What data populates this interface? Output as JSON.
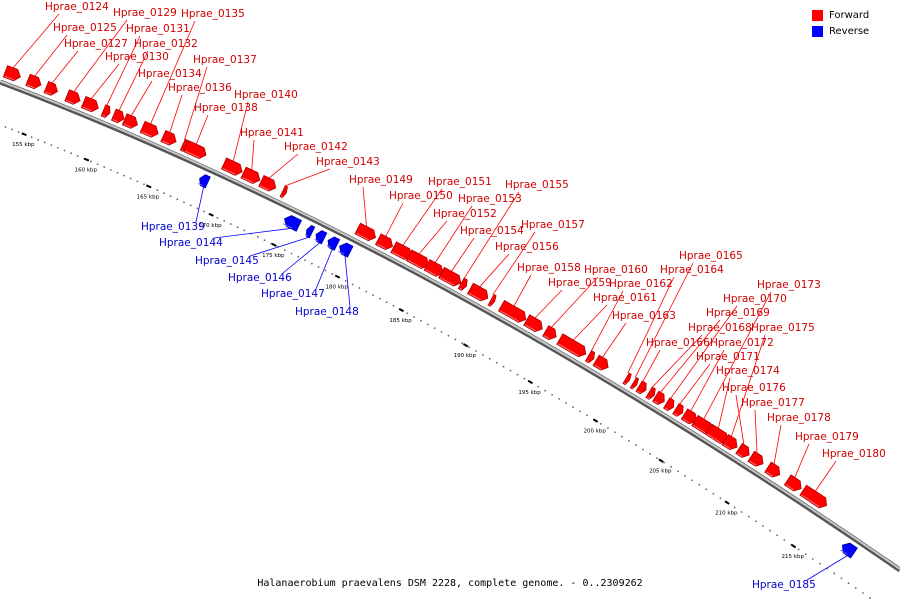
{
  "legend": {
    "items": [
      {
        "label": "Forward",
        "color": "#ff0000"
      },
      {
        "label": "Reverse",
        "color": "#0000ff"
      }
    ]
  },
  "caption": "Halanaerobium praevalens DSM 2228, complete genome. - 0..2309262",
  "ticks": [
    "155 kbp",
    "160 kbp",
    "165 kbp",
    "170 kbp",
    "175 kbp",
    "180 kbp",
    "185 kbp",
    "190 kbp",
    "195 kbp",
    "200 kbp",
    "205 kbp",
    "210 kbp",
    "215 kbp"
  ],
  "genes": [
    {
      "id": "Hprae_0124",
      "strand": "forward"
    },
    {
      "id": "Hprae_0125",
      "strand": "forward"
    },
    {
      "id": "Hprae_0127",
      "strand": "forward"
    },
    {
      "id": "Hprae_0129",
      "strand": "forward"
    },
    {
      "id": "Hprae_0130",
      "strand": "forward"
    },
    {
      "id": "Hprae_0131",
      "strand": "forward"
    },
    {
      "id": "Hprae_0132",
      "strand": "forward"
    },
    {
      "id": "Hprae_0134",
      "strand": "forward"
    },
    {
      "id": "Hprae_0135",
      "strand": "forward"
    },
    {
      "id": "Hprae_0136",
      "strand": "forward"
    },
    {
      "id": "Hprae_0137",
      "strand": "forward"
    },
    {
      "id": "Hprae_0138",
      "strand": "forward"
    },
    {
      "id": "Hprae_0139",
      "strand": "reverse"
    },
    {
      "id": "Hprae_0140",
      "strand": "forward"
    },
    {
      "id": "Hprae_0141",
      "strand": "forward"
    },
    {
      "id": "Hprae_0142",
      "strand": "forward"
    },
    {
      "id": "Hprae_0143",
      "strand": "forward"
    },
    {
      "id": "Hprae_0144",
      "strand": "reverse"
    },
    {
      "id": "Hprae_0145",
      "strand": "reverse"
    },
    {
      "id": "Hprae_0146",
      "strand": "reverse"
    },
    {
      "id": "Hprae_0147",
      "strand": "reverse"
    },
    {
      "id": "Hprae_0148",
      "strand": "reverse"
    },
    {
      "id": "Hprae_0149",
      "strand": "forward"
    },
    {
      "id": "Hprae_0150",
      "strand": "forward"
    },
    {
      "id": "Hprae_0151",
      "strand": "forward"
    },
    {
      "id": "Hprae_0152",
      "strand": "forward"
    },
    {
      "id": "Hprae_0153",
      "strand": "forward"
    },
    {
      "id": "Hprae_0154",
      "strand": "forward"
    },
    {
      "id": "Hprae_0155",
      "strand": "forward"
    },
    {
      "id": "Hprae_0156",
      "strand": "forward"
    },
    {
      "id": "Hprae_0157",
      "strand": "forward"
    },
    {
      "id": "Hprae_0158",
      "strand": "forward"
    },
    {
      "id": "Hprae_0159",
      "strand": "forward"
    },
    {
      "id": "Hprae_0160",
      "strand": "forward"
    },
    {
      "id": "Hprae_0161",
      "strand": "forward"
    },
    {
      "id": "Hprae_0162",
      "strand": "forward"
    },
    {
      "id": "Hprae_0163",
      "strand": "forward"
    },
    {
      "id": "Hprae_0164",
      "strand": "forward"
    },
    {
      "id": "Hprae_0165",
      "strand": "forward"
    },
    {
      "id": "Hprae_0166",
      "strand": "forward"
    },
    {
      "id": "Hprae_0168",
      "strand": "forward"
    },
    {
      "id": "Hprae_0169",
      "strand": "forward"
    },
    {
      "id": "Hprae_0170",
      "strand": "forward"
    },
    {
      "id": "Hprae_0171",
      "strand": "forward"
    },
    {
      "id": "Hprae_0172",
      "strand": "forward"
    },
    {
      "id": "Hprae_0173",
      "strand": "forward"
    },
    {
      "id": "Hprae_0174",
      "strand": "forward"
    },
    {
      "id": "Hprae_0175",
      "strand": "forward"
    },
    {
      "id": "Hprae_0176",
      "strand": "forward"
    },
    {
      "id": "Hprae_0177",
      "strand": "forward"
    },
    {
      "id": "Hprae_0178",
      "strand": "forward"
    },
    {
      "id": "Hprae_0179",
      "strand": "forward"
    },
    {
      "id": "Hprae_0180",
      "strand": "forward"
    },
    {
      "id": "Hprae_0185",
      "strand": "reverse"
    }
  ]
}
